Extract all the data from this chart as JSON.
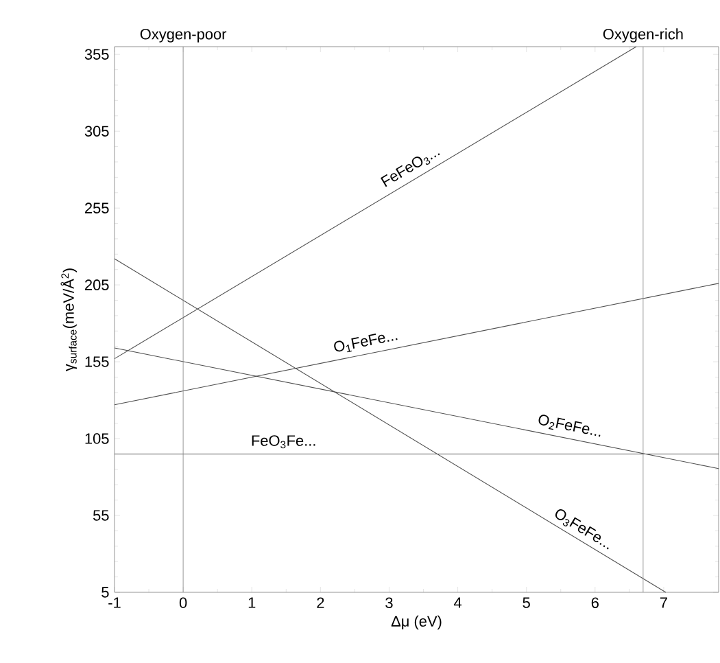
{
  "chart_data": {
    "type": "line",
    "xlabel": "Δμ (eV)",
    "ylabel": "γ$_{surface}$(meV/Å$^{2}$)",
    "xlim": [
      -1,
      7.8
    ],
    "ylim": [
      5,
      360
    ],
    "xticks": [
      -1,
      0,
      1,
      2,
      3,
      4,
      5,
      6,
      7
    ],
    "yticks": [
      5,
      55,
      105,
      155,
      205,
      255,
      305,
      355
    ],
    "grid": false,
    "legend": false,
    "marker": "none",
    "line_style": "solid",
    "series": [
      {
        "name": "FeFeO$_{3}$...",
        "color": "#505050",
        "x": [
          -1,
          6.6
        ],
        "values": [
          157,
          360
        ]
      },
      {
        "name": "O$_{1}$FeFe...",
        "color": "#505050",
        "x": [
          -1,
          7.8
        ],
        "values": [
          127,
          206
        ]
      },
      {
        "name": "O$_{2}$FeFe...",
        "color": "#505050",
        "x": [
          -1,
          7.8
        ],
        "values": [
          164,
          85.5
        ]
      },
      {
        "name": "FeO$_{3}$Fe...",
        "color": "#505050",
        "x": [
          -1,
          7.8
        ],
        "values": [
          95,
          95
        ]
      },
      {
        "name": "O$_{3}$FeFe...",
        "color": "#505050",
        "x": [
          -1,
          7.03
        ],
        "values": [
          222,
          5
        ]
      }
    ],
    "ref_lines": [
      {
        "axis": "x",
        "value": 0,
        "label": "Oxygen-poor",
        "color": "#808080"
      },
      {
        "axis": "x",
        "value": 6.7,
        "label": "Oxygen-rich",
        "color": "#808080"
      }
    ]
  }
}
